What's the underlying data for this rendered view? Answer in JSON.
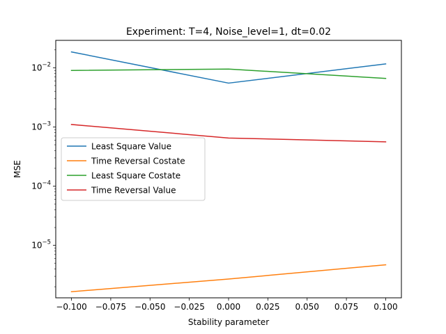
{
  "chart_data": {
    "type": "line",
    "title": "Experiment: T=4, Noise_level=1, dt=0.02",
    "xlabel": "Stability parameter",
    "ylabel": "MSE",
    "yscale": "log",
    "x": [
      -0.1,
      0.0,
      0.1
    ],
    "xlim": [
      -0.11,
      0.11
    ],
    "ylim": [
      1.3e-06,
      0.029
    ],
    "xticks": [
      -0.1,
      -0.075,
      -0.05,
      -0.025,
      0.0,
      0.025,
      0.05,
      0.075,
      0.1
    ],
    "xtick_labels": [
      "−0.100",
      "−0.075",
      "−0.050",
      "−0.025",
      "0.000",
      "0.025",
      "0.050",
      "0.075",
      "0.100"
    ],
    "yticks": [
      {
        "value": 1e-05,
        "base": "10",
        "exp": "−5"
      },
      {
        "value": 0.0001,
        "base": "10",
        "exp": "−4"
      },
      {
        "value": 0.001,
        "base": "10",
        "exp": "−3"
      },
      {
        "value": 0.01,
        "base": "10",
        "exp": "−2"
      }
    ],
    "grid": false,
    "legend_position": "center-left",
    "series": [
      {
        "name": "Least Square Value",
        "color": "#1f77b4",
        "values": [
          0.0185,
          0.0055,
          0.0116
        ]
      },
      {
        "name": "Time Reversal Costate",
        "color": "#ff7f0e",
        "values": [
          1.65e-06,
          2.7e-06,
          4.7e-06
        ]
      },
      {
        "name": "Least Square Costate",
        "color": "#2ca02c",
        "values": [
          0.009,
          0.0095,
          0.0066
        ]
      },
      {
        "name": "Time Reversal Value",
        "color": "#d62728",
        "values": [
          0.0011,
          0.00065,
          0.00056
        ]
      }
    ]
  }
}
